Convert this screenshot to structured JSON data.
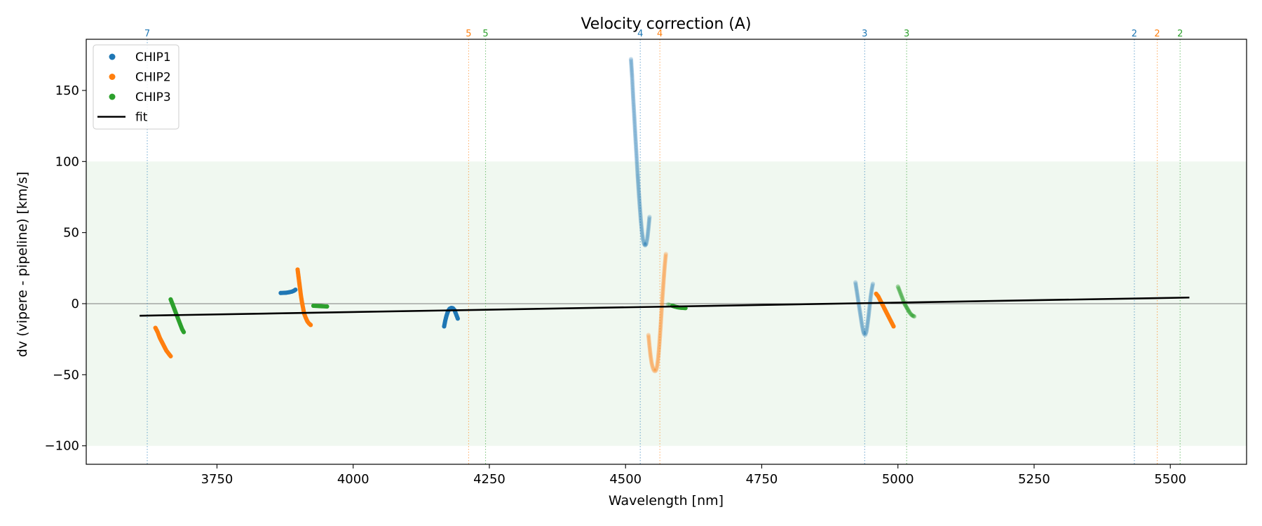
{
  "chart_data": {
    "type": "scatter",
    "title": "Velocity correction (A)",
    "xlabel": "Wavelength [nm]",
    "ylabel": "dv (vipere - pipeline) [km/s]",
    "xlim": [
      3510,
      5640
    ],
    "ylim": [
      -113,
      186
    ],
    "x_ticks": [
      3750,
      4000,
      4250,
      4500,
      4750,
      5000,
      5250,
      5500
    ],
    "y_ticks": [
      150,
      100,
      50,
      0,
      -50,
      -100
    ],
    "y_tick_labels": [
      "150",
      "100",
      "50",
      "0",
      "−50",
      "−100"
    ],
    "shaded_band": {
      "from": -100,
      "to": 100,
      "color": "#2ca02c",
      "opacity": 0.07
    },
    "zero_line": 0,
    "colors": {
      "CHIP1": "#1f77b4",
      "CHIP2": "#ff7f0e",
      "CHIP3": "#2ca02c",
      "fit": "#000000"
    },
    "legend": {
      "position": "top-left",
      "entries": [
        {
          "label": "CHIP1",
          "marker": "dot",
          "color": "#1f77b4"
        },
        {
          "label": "CHIP2",
          "marker": "dot",
          "color": "#ff7f0e"
        },
        {
          "label": "CHIP3",
          "marker": "dot",
          "color": "#2ca02c"
        },
        {
          "label": "fit",
          "marker": "line",
          "color": "#000000"
        }
      ]
    },
    "order_markers": [
      {
        "x": 3622,
        "label": "7",
        "chip": "CHIP1"
      },
      {
        "x": 4212,
        "label": "5",
        "chip": "CHIP2"
      },
      {
        "x": 4243,
        "label": "5",
        "chip": "CHIP3"
      },
      {
        "x": 4527,
        "label": "4",
        "chip": "CHIP1"
      },
      {
        "x": 4563,
        "label": "4",
        "chip": "CHIP2"
      },
      {
        "x": 4939,
        "label": "3",
        "chip": "CHIP1"
      },
      {
        "x": 5016,
        "label": "3",
        "chip": "CHIP3"
      },
      {
        "x": 5434,
        "label": "2",
        "chip": "CHIP1"
      },
      {
        "x": 5476,
        "label": "2",
        "chip": "CHIP2"
      },
      {
        "x": 5518,
        "label": "2",
        "chip": "CHIP3"
      }
    ],
    "fit": {
      "x": [
        3608,
        5535
      ],
      "y": [
        -8.5,
        4.3
      ]
    },
    "series": [
      {
        "name": "CHIP1",
        "segments": [
          {
            "alpha": 1.0,
            "points": [
              [
                3867,
                7.5
              ],
              [
                3872,
                7.6
              ],
              [
                3877,
                7.7
              ],
              [
                3882,
                8.0
              ],
              [
                3887,
                8.4
              ],
              [
                3891,
                9.0
              ],
              [
                3894,
                9.8
              ]
            ]
          },
          {
            "alpha": 1.0,
            "points": [
              [
                4167,
                -16
              ],
              [
                4169,
                -12
              ],
              [
                4171,
                -9
              ],
              [
                4173,
                -6.5
              ],
              [
                4175,
                -4.8
              ],
              [
                4177,
                -3.6
              ],
              [
                4180,
                -3.0
              ],
              [
                4183,
                -3.2
              ],
              [
                4186,
                -4.5
              ],
              [
                4188,
                -6.5
              ],
              [
                4190,
                -8.5
              ],
              [
                4192,
                -10.5
              ]
            ]
          },
          {
            "alpha": 0.25,
            "points": [
              [
                4510,
                172
              ],
              [
                4512,
                160
              ],
              [
                4514,
                145
              ],
              [
                4516,
                132
              ],
              [
                4518,
                118
              ],
              [
                4520,
                105
              ],
              [
                4522,
                92
              ],
              [
                4524,
                80
              ],
              [
                4526,
                69
              ],
              [
                4528,
                59
              ],
              [
                4530,
                51
              ],
              [
                4532,
                45
              ],
              [
                4534,
                42
              ],
              [
                4536,
                41
              ],
              [
                4538,
                42
              ],
              [
                4540,
                46
              ],
              [
                4542,
                53
              ],
              [
                4544,
                61
              ]
            ]
          },
          {
            "alpha": 0.25,
            "points": [
              [
                4922,
                15
              ],
              [
                4924,
                10
              ],
              [
                4926,
                5
              ],
              [
                4928,
                0
              ],
              [
                4930,
                -5
              ],
              [
                4932,
                -10
              ],
              [
                4934,
                -15
              ],
              [
                4936,
                -19
              ],
              [
                4938,
                -21.5
              ],
              [
                4940,
                -22
              ],
              [
                4942,
                -20
              ],
              [
                4944,
                -15
              ],
              [
                4946,
                -9
              ],
              [
                4948,
                -2
              ],
              [
                4950,
                5
              ],
              [
                4952,
                10
              ],
              [
                4954,
                14
              ]
            ]
          }
        ]
      },
      {
        "name": "CHIP2",
        "segments": [
          {
            "alpha": 1.0,
            "points": [
              [
                3637,
                -17
              ],
              [
                3641,
                -20
              ],
              [
                3645,
                -24
              ],
              [
                3649,
                -27
              ],
              [
                3653,
                -30
              ],
              [
                3657,
                -33
              ],
              [
                3661,
                -35
              ],
              [
                3665,
                -37
              ]
            ]
          },
          {
            "alpha": 1.0,
            "points": [
              [
                3898,
                24
              ],
              [
                3900,
                18
              ],
              [
                3902,
                12
              ],
              [
                3904,
                6
              ],
              [
                3906,
                1
              ],
              [
                3908,
                -3
              ],
              [
                3910,
                -7
              ],
              [
                3913,
                -10
              ],
              [
                3916,
                -12.5
              ],
              [
                3919,
                -14
              ],
              [
                3922,
                -15
              ]
            ]
          },
          {
            "alpha": 0.25,
            "points": [
              [
                4542,
                -22
              ],
              [
                4544,
                -30
              ],
              [
                4546,
                -37
              ],
              [
                4548,
                -42
              ],
              [
                4550,
                -45
              ],
              [
                4552,
                -47
              ],
              [
                4554,
                -47.5
              ],
              [
                4556,
                -47
              ],
              [
                4558,
                -44
              ],
              [
                4560,
                -38
              ],
              [
                4562,
                -29
              ],
              [
                4564,
                -18
              ],
              [
                4566,
                -6
              ],
              [
                4568,
                6
              ],
              [
                4570,
                17
              ],
              [
                4572,
                27
              ],
              [
                4574,
                35
              ]
            ]
          },
          {
            "alpha": 1.0,
            "points": [
              [
                4960,
                7
              ],
              [
                4964,
                5
              ],
              [
                4968,
                2
              ],
              [
                4972,
                -1
              ],
              [
                4976,
                -4
              ],
              [
                4980,
                -7
              ],
              [
                4984,
                -10
              ],
              [
                4988,
                -13
              ],
              [
                4992,
                -16
              ]
            ]
          }
        ]
      },
      {
        "name": "CHIP3",
        "segments": [
          {
            "alpha": 1.0,
            "points": [
              [
                3665,
                3
              ],
              [
                3668,
                0
              ],
              [
                3671,
                -3
              ],
              [
                3674,
                -6
              ],
              [
                3677,
                -9
              ],
              [
                3680,
                -12
              ],
              [
                3683,
                -15
              ],
              [
                3686,
                -18
              ],
              [
                3689,
                -20
              ]
            ]
          },
          {
            "alpha": 1.0,
            "points": [
              [
                3927,
                -1.5
              ],
              [
                3932,
                -1.6
              ],
              [
                3937,
                -1.7
              ],
              [
                3942,
                -1.8
              ],
              [
                3947,
                -1.9
              ],
              [
                3952,
                -2.0
              ]
            ]
          },
          {
            "alpha": 0.25,
            "points": [
              [
                4578,
                -0.5
              ],
              [
                4582,
                -1.0
              ]
            ]
          },
          {
            "alpha": 1.0,
            "points": [
              [
                4586,
                -1.5
              ],
              [
                4590,
                -2.0
              ],
              [
                4594,
                -2.4
              ],
              [
                4598,
                -2.7
              ],
              [
                4602,
                -2.9
              ],
              [
                4606,
                -3.0
              ],
              [
                4610,
                -3.1
              ]
            ]
          },
          {
            "alpha": 0.4,
            "points": [
              [
                5000,
                12
              ],
              [
                5003,
                9
              ],
              [
                5006,
                6
              ],
              [
                5009,
                3
              ],
              [
                5012,
                0
              ],
              [
                5015,
                -2
              ],
              [
                5018,
                -4
              ],
              [
                5021,
                -6
              ],
              [
                5024,
                -7.5
              ],
              [
                5027,
                -8.5
              ],
              [
                5030,
                -9
              ]
            ]
          }
        ]
      }
    ]
  }
}
